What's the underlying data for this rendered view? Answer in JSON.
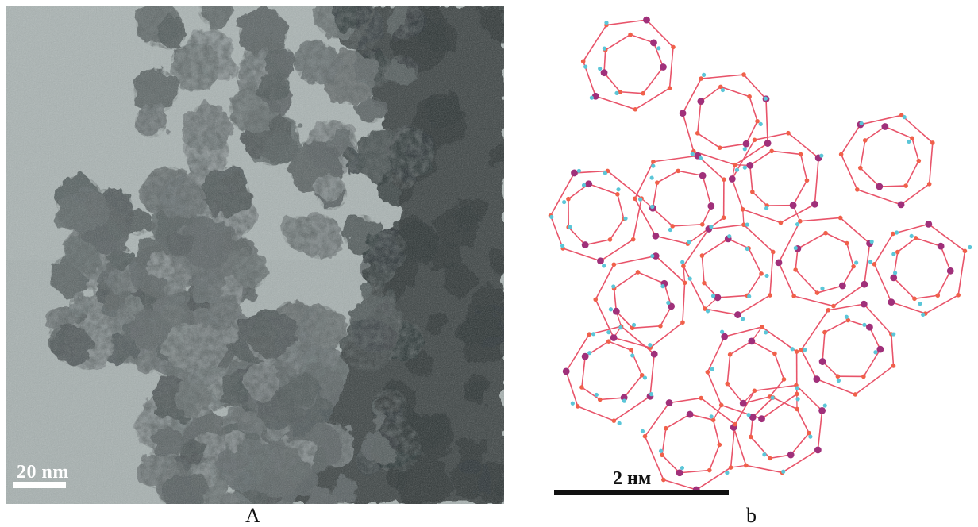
{
  "figure": {
    "panel_a": {
      "label": "A",
      "scale_bar_label": "20 nm"
    },
    "panel_b": {
      "label": "b",
      "scale_bar_label": "2 нм"
    }
  },
  "colors": {
    "micrograph_background": "#a9b3b2",
    "micrograph_dark": "#2c3334",
    "framework_bond": "#e8546a",
    "framework_metal_atom": "#a0307a",
    "framework_oxygen_atom": "#f0604a",
    "framework_hydrogen_atom": "#5bc6d8"
  }
}
